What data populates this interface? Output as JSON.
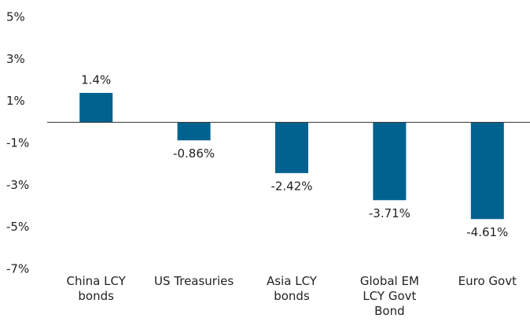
{
  "chart_data": {
    "type": "bar",
    "categories": [
      "China LCY bonds",
      "US Treasuries",
      "Asia LCY bonds",
      "Global EM LCY Govt Bond",
      "Euro Govt"
    ],
    "values": [
      1.4,
      -0.86,
      -2.42,
      -3.71,
      -4.61
    ],
    "value_labels": [
      "1.4%",
      "-0.86%",
      "-2.42%",
      "-3.71%",
      "-4.61%"
    ],
    "color": "#00628f",
    "ylim": [
      -7,
      5
    ],
    "yticks": [
      {
        "value": 5,
        "label": "5%"
      },
      {
        "value": 3,
        "label": "3%"
      },
      {
        "value": 1,
        "label": "1%"
      },
      {
        "value": -1,
        "label": "-1%"
      },
      {
        "value": -3,
        "label": "-3%"
      },
      {
        "value": -5,
        "label": "-5%"
      },
      {
        "value": -7,
        "label": "-7%"
      }
    ],
    "grid": false
  }
}
